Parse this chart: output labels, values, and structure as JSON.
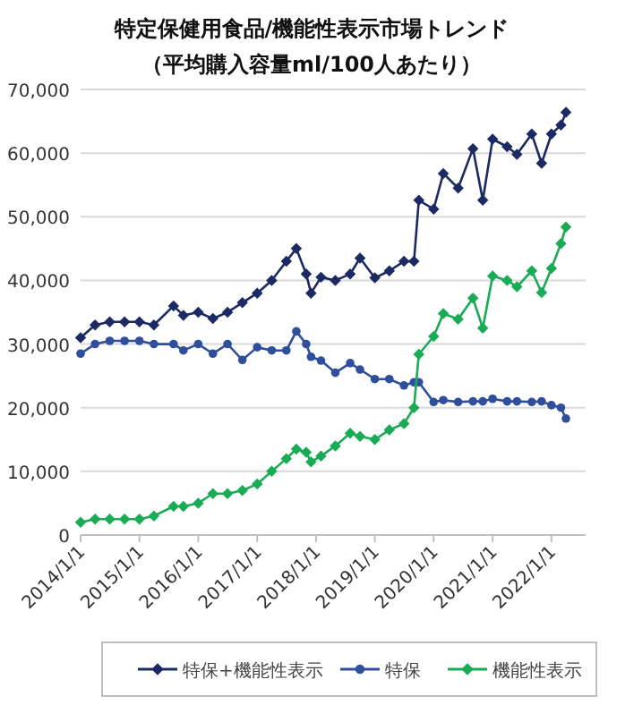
{
  "chart_data": {
    "type": "line",
    "title": "特定保健用食品/機能性表示市場トレンド",
    "subtitle": "（平均購入容量ml/100人あたり）",
    "x": [
      "2014-01",
      "2014-04",
      "2014-07",
      "2014-10",
      "2015-01",
      "2015-04",
      "2015-08",
      "2015-10",
      "2016-01",
      "2016-04",
      "2016-07",
      "2016-10",
      "2017-01",
      "2017-04",
      "2017-07",
      "2017-09",
      "2017-11",
      "2017-12",
      "2018-02",
      "2018-05",
      "2018-08",
      "2018-10",
      "2019-01",
      "2019-04",
      "2019-07",
      "2019-09",
      "2019-10",
      "2020-01",
      "2020-03",
      "2020-06",
      "2020-09",
      "2020-11",
      "2021-01",
      "2021-04",
      "2021-06",
      "2021-09",
      "2021-11",
      "2022-01",
      "2022-03",
      "2022-04"
    ],
    "series": [
      {
        "name": "特保+機能性表示",
        "color": "#1b2a63",
        "marker": "diamond",
        "values": [
          31000,
          33000,
          33500,
          33500,
          33500,
          33000,
          36000,
          34500,
          35000,
          34000,
          35000,
          36500,
          38000,
          40000,
          43000,
          45000,
          41000,
          38000,
          40500,
          40000,
          41000,
          43500,
          40400,
          41500,
          43000,
          43000,
          52600,
          51200,
          56800,
          54500,
          60700,
          52600,
          62200,
          61000,
          59800,
          63000,
          58400,
          63000,
          64400,
          66400
        ]
      },
      {
        "name": "特保",
        "color": "#2f4f9c",
        "marker": "circle",
        "values": [
          28500,
          30000,
          30500,
          30500,
          30500,
          30000,
          30000,
          29000,
          30000,
          28500,
          30000,
          27500,
          29500,
          29000,
          29000,
          32000,
          30000,
          28000,
          27400,
          25500,
          27000,
          26000,
          24500,
          24500,
          23500,
          24000,
          24000,
          20900,
          21200,
          20900,
          21000,
          21000,
          21400,
          21000,
          21000,
          20900,
          21000,
          20400,
          20000,
          18300
        ]
      },
      {
        "name": "機能性表示",
        "color": "#1aab55",
        "marker": "diamond",
        "values": [
          2000,
          2500,
          2500,
          2500,
          2500,
          3000,
          4500,
          4500,
          5000,
          6500,
          6500,
          7000,
          8000,
          10000,
          12000,
          13500,
          13000,
          11500,
          12400,
          14000,
          16000,
          15500,
          15000,
          16500,
          17500,
          20000,
          28400,
          31200,
          34800,
          33900,
          37200,
          32500,
          40700,
          40000,
          39000,
          41500,
          38100,
          41900,
          45800,
          48400
        ]
      }
    ],
    "xlim": [
      "2014-01",
      "2022-08"
    ],
    "xticks": [
      {
        "value": "2014-01-01",
        "label": "2014/1/1"
      },
      {
        "value": "2015-01-01",
        "label": "2015/1/1"
      },
      {
        "value": "2016-01-01",
        "label": "2016/1/1"
      },
      {
        "value": "2017-01-01",
        "label": "2017/1/1"
      },
      {
        "value": "2018-01-01",
        "label": "2018/1/1"
      },
      {
        "value": "2019-01-01",
        "label": "2019/1/1"
      },
      {
        "value": "2020-01-01",
        "label": "2020/1/1"
      },
      {
        "value": "2021-01-01",
        "label": "2021/1/1"
      },
      {
        "value": "2022-01-01",
        "label": "2022/1/1"
      }
    ],
    "ylim": [
      0,
      70000
    ],
    "yticks": [
      {
        "value": 0,
        "label": "0"
      },
      {
        "value": 10000,
        "label": "10,000"
      },
      {
        "value": 20000,
        "label": "20,000"
      },
      {
        "value": 30000,
        "label": "30,000"
      },
      {
        "value": 40000,
        "label": "40,000"
      },
      {
        "value": 50000,
        "label": "50,000"
      },
      {
        "value": 60000,
        "label": "60,000"
      },
      {
        "value": 70000,
        "label": "70,000"
      }
    ],
    "grid": "y",
    "legend": "bottom",
    "line_style": "solid"
  }
}
